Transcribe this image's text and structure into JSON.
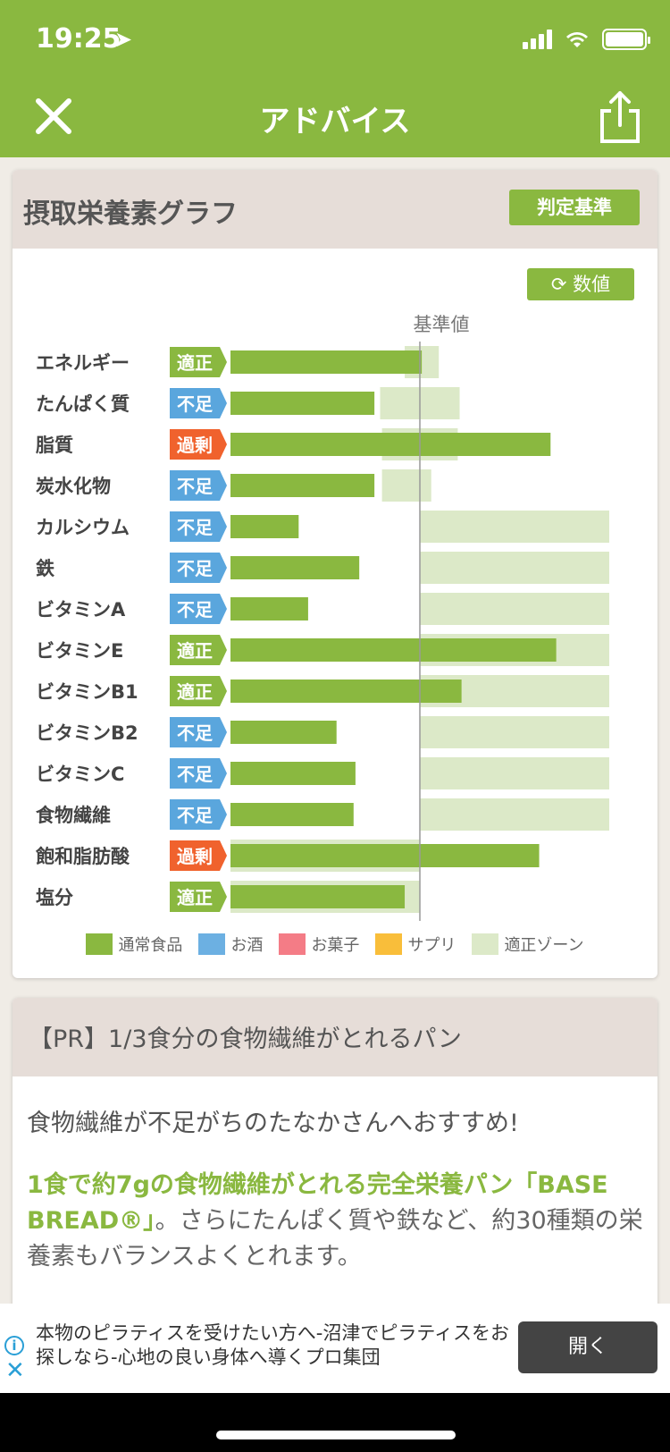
{
  "status": {
    "time": "19:25",
    "location_arrow": "➤"
  },
  "header": {
    "title": "アドバイス"
  },
  "graph_card": {
    "title": "摂取栄養素グラフ",
    "criteria_button": "判定基準",
    "value_button": "数値",
    "reference_label": "基準値"
  },
  "colors": {
    "brand": "#8ab840",
    "adequate": "#8ab840",
    "deficient": "#5aa6dd",
    "excess": "#f0622d",
    "zone": "#dce9c8"
  },
  "chart_data": {
    "type": "bar",
    "orientation": "horizontal",
    "reference_value_percent": 100,
    "categories": [
      "エネルギー",
      "たんぱく質",
      "脂質",
      "炭水化物",
      "カルシウム",
      "鉄",
      "ビタミンA",
      "ビタミンE",
      "ビタミンB1",
      "ビタミンB2",
      "ビタミンC",
      "食物繊維",
      "飽和脂肪酸",
      "塩分"
    ],
    "status": [
      "適正",
      "不足",
      "過剰",
      "不足",
      "不足",
      "不足",
      "不足",
      "適正",
      "適正",
      "不足",
      "不足",
      "不足",
      "過剰",
      "適正"
    ],
    "status_types": [
      "adequate",
      "deficient",
      "excess",
      "deficient",
      "deficient",
      "deficient",
      "deficient",
      "adequate",
      "adequate",
      "deficient",
      "deficient",
      "deficient",
      "excess",
      "adequate"
    ],
    "series": [
      {
        "name": "通常食品",
        "values": [
          101,
          76,
          169,
          76,
          36,
          68,
          41,
          172,
          122,
          56,
          66,
          65,
          163,
          92
        ]
      }
    ],
    "adequate_zone": [
      [
        92,
        110
      ],
      [
        79,
        121
      ],
      [
        80,
        120
      ],
      [
        80,
        106
      ],
      [
        100,
        200
      ],
      [
        100,
        200
      ],
      [
        100,
        200
      ],
      [
        100,
        200
      ],
      [
        100,
        200
      ],
      [
        100,
        200
      ],
      [
        100,
        200
      ],
      [
        100,
        200
      ],
      [
        0,
        100
      ],
      [
        0,
        100
      ]
    ],
    "legend": [
      {
        "label": "通常食品",
        "color": "#8ab840"
      },
      {
        "label": "お酒",
        "color": "#6cb0e2"
      },
      {
        "label": "お菓子",
        "color": "#f47c86"
      },
      {
        "label": "サプリ",
        "color": "#f9be3a"
      },
      {
        "label": "適正ゾーン",
        "color": "#dce9c8"
      }
    ]
  },
  "pr_card": {
    "title": "【PR】1/3食分の食物繊維がとれるパン",
    "paragraph1": "食物繊維が不足がちのたなかさんへおすすめ!",
    "highlight": "1食で約7gの食物繊維がとれる完全栄養パン「BASE BREAD®」",
    "paragraph2_rest": "。さらにたんぱく質や鉄など、約30種類の栄養素もバランスよくとれます。"
  },
  "ad": {
    "text": "本物のピラティスを受けたい方へ-沼津でピラティスをお探しなら-心地の良い身体へ導くプロ集団",
    "button": "開く",
    "info_icon": "i",
    "close_icon": "✕"
  }
}
